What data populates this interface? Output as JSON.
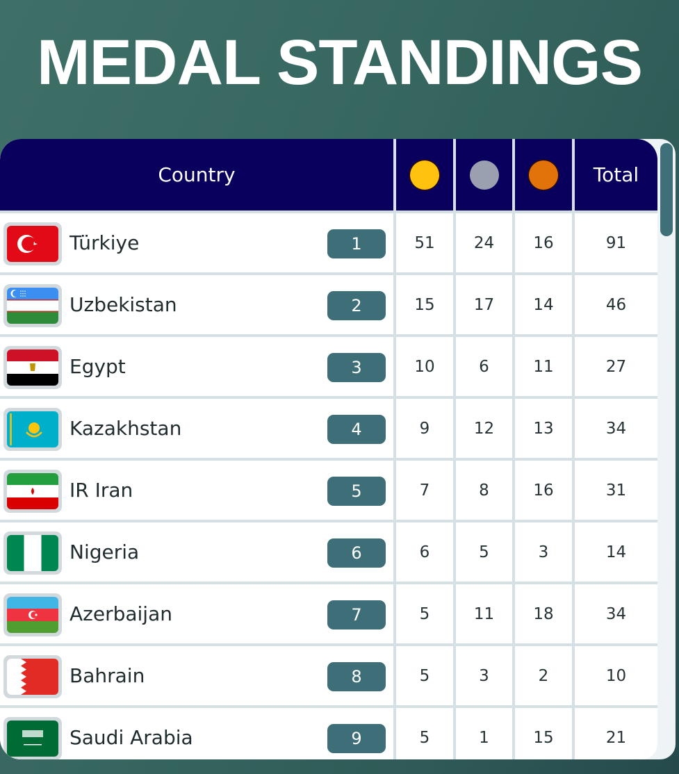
{
  "title": "MEDAL STANDINGS",
  "header": {
    "country": "Country",
    "gold_icon": "gold-medal-icon",
    "silver_icon": "silver-medal-icon",
    "bronze_icon": "bronze-medal-icon",
    "total": "Total"
  },
  "colors": {
    "header_bg": "#08005c",
    "gold": "#ffc20e",
    "silver": "#9aa0b0",
    "bronze": "#e2720a",
    "rank_badge": "#3e6e78",
    "background": "#36665f"
  },
  "rows": [
    {
      "flag": "turkiye-flag",
      "country": "Türkiye",
      "rank": "1",
      "gold": "51",
      "silver": "24",
      "bronze": "16",
      "total": "91"
    },
    {
      "flag": "uzbekistan-flag",
      "country": "Uzbekistan",
      "rank": "2",
      "gold": "15",
      "silver": "17",
      "bronze": "14",
      "total": "46"
    },
    {
      "flag": "egypt-flag",
      "country": "Egypt",
      "rank": "3",
      "gold": "10",
      "silver": "6",
      "bronze": "11",
      "total": "27"
    },
    {
      "flag": "kazakhstan-flag",
      "country": "Kazakhstan",
      "rank": "4",
      "gold": "9",
      "silver": "12",
      "bronze": "13",
      "total": "34"
    },
    {
      "flag": "iran-flag",
      "country": "IR Iran",
      "rank": "5",
      "gold": "7",
      "silver": "8",
      "bronze": "16",
      "total": "31"
    },
    {
      "flag": "nigeria-flag",
      "country": "Nigeria",
      "rank": "6",
      "gold": "6",
      "silver": "5",
      "bronze": "3",
      "total": "14"
    },
    {
      "flag": "azerbaijan-flag",
      "country": "Azerbaijan",
      "rank": "7",
      "gold": "5",
      "silver": "11",
      "bronze": "18",
      "total": "34"
    },
    {
      "flag": "bahrain-flag",
      "country": "Bahrain",
      "rank": "8",
      "gold": "5",
      "silver": "3",
      "bronze": "2",
      "total": "10"
    },
    {
      "flag": "saudi-arabia-flag",
      "country": "Saudi Arabia",
      "rank": "9",
      "gold": "5",
      "silver": "1",
      "bronze": "15",
      "total": "21"
    }
  ]
}
